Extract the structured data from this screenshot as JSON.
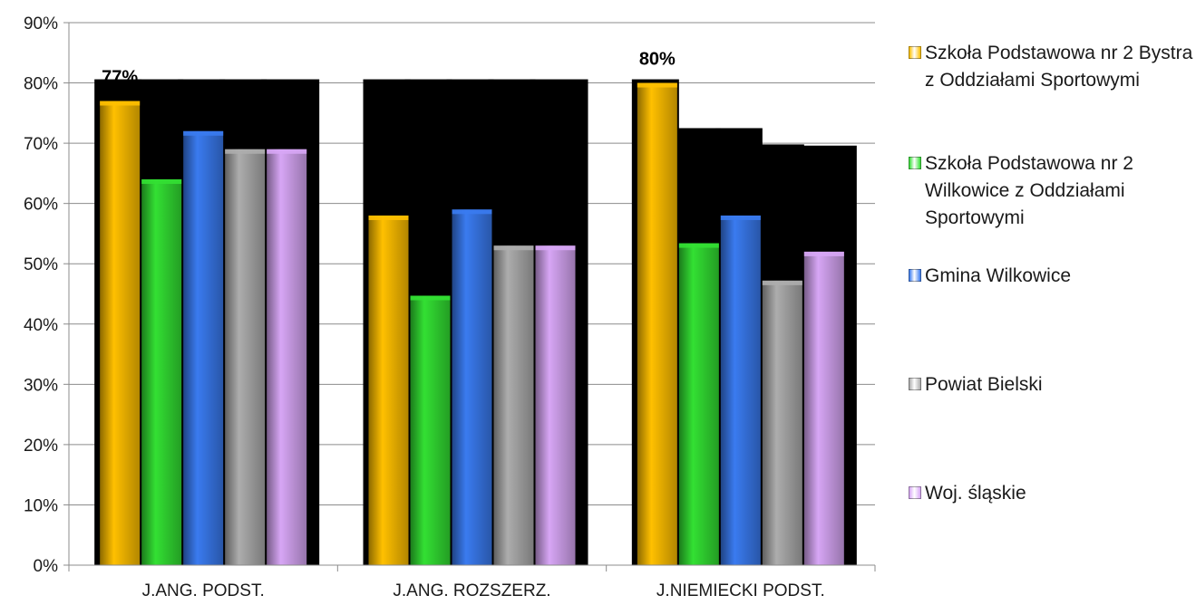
{
  "chart_data": {
    "type": "bar",
    "categories": [
      "J.ANG. PODST.",
      "J.ANG. ROZSZERZ.",
      "J.NIEMIECKI PODST."
    ],
    "series": [
      {
        "name": "Szkoła Podstawowa nr 2 Bystra z Oddziałami Sportowymi",
        "color": "#FFC000",
        "values": [
          77,
          58,
          80
        ],
        "labels": [
          "77%",
          "",
          "80%"
        ]
      },
      {
        "name": "Szkoła Podstawowa nr 2 Wilkowice z Oddziałami Sportowymi",
        "color": "#33E033",
        "values": [
          64,
          44.7,
          53.4
        ],
        "labels": [
          "",
          "",
          ""
        ]
      },
      {
        "name": "Gmina Wilkowice",
        "color": "#3A7BF0",
        "values": [
          72,
          59,
          58
        ],
        "labels": [
          "",
          "",
          ""
        ]
      },
      {
        "name": "Powiat Bielski",
        "color": "#ADADAD",
        "values": [
          69,
          53,
          47.2
        ],
        "labels": [
          "",
          "",
          ""
        ]
      },
      {
        "name": "Woj. śląskie",
        "color": "#D7A6F5",
        "values": [
          69,
          53,
          52
        ],
        "labels": [
          "",
          "",
          ""
        ]
      }
    ],
    "yticks": [
      "0%",
      "10%",
      "20%",
      "30%",
      "40%",
      "50%",
      "60%",
      "70%",
      "80%",
      "90%"
    ],
    "ylim": [
      0,
      90
    ],
    "grid": true,
    "legend_position": "right",
    "title": "",
    "xlabel": "",
    "ylabel": ""
  }
}
